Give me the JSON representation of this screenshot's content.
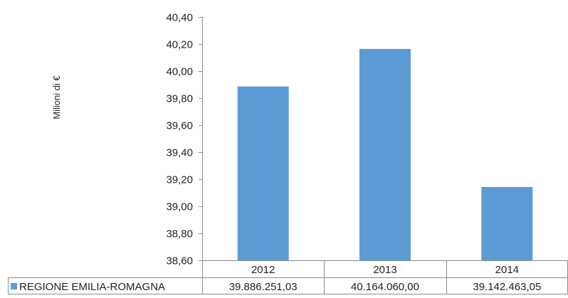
{
  "chart_data": {
    "type": "bar",
    "title": "",
    "ylabel": "Milioni di €",
    "xlabel": "",
    "categories": [
      "2012",
      "2013",
      "2014"
    ],
    "series": [
      {
        "name": "REGIONE EMILIA-ROMAGNA",
        "values": [
          39.88625103,
          40.16406,
          39.14246305
        ],
        "value_labels": [
          "39.886.251,03",
          "40.164.060,00",
          "39.142.463,05"
        ],
        "color": "#5b9bd5"
      }
    ],
    "ylim": [
      38.6,
      40.4
    ],
    "yticks": [
      38.6,
      38.8,
      39.0,
      39.2,
      39.4,
      39.6,
      39.8,
      40.0,
      40.2,
      40.4
    ],
    "ytick_labels": [
      "38,60",
      "38,80",
      "39,00",
      "39,20",
      "39,40",
      "39,60",
      "39,80",
      "40,00",
      "40,20",
      "40,40"
    ],
    "grid": false,
    "legend": "data-table",
    "data_table": true
  }
}
